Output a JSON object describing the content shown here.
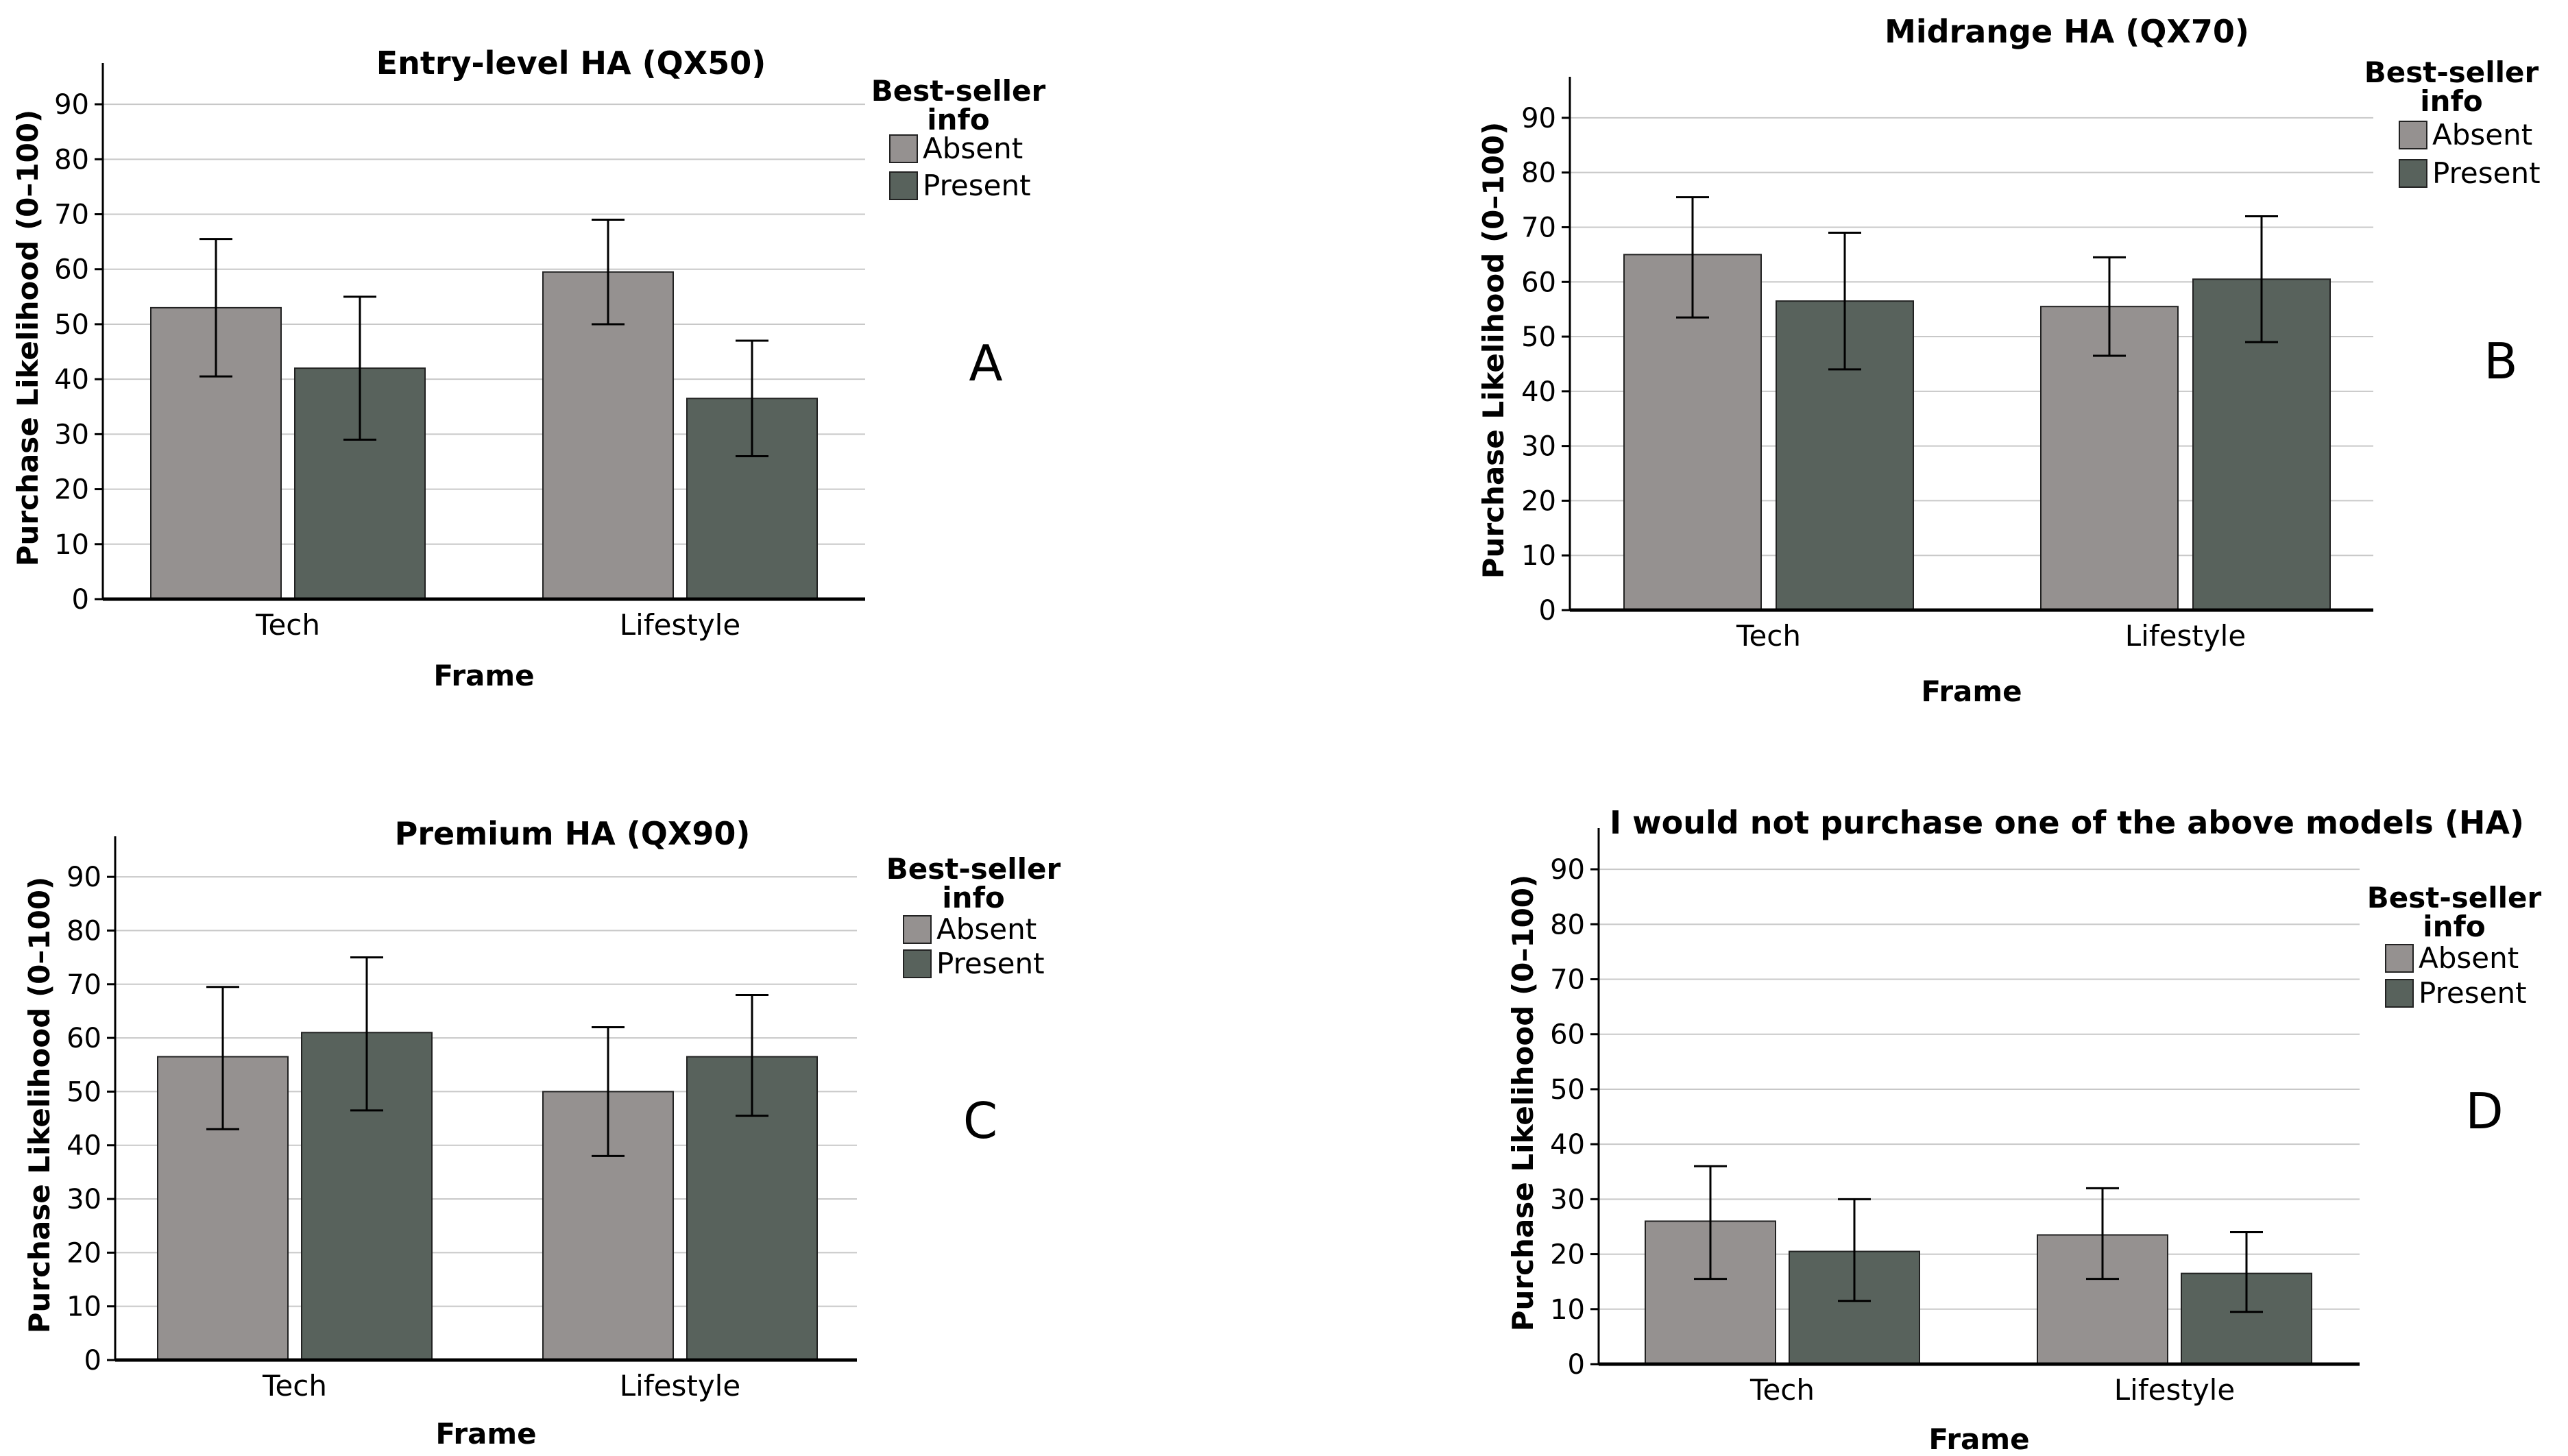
{
  "colors": {
    "absent": "#959190",
    "present": "#58625c",
    "grid": "#c8c8c8",
    "axis": "#000000",
    "error_bar": "#000000"
  },
  "chart_data": [
    {
      "type": "bar",
      "panel_label": "A",
      "title": "Entry-level HA (QX50)",
      "xlabel": "Frame",
      "ylabel": "Purchase Likelihood (0–100)",
      "categories": [
        "Tech",
        "Lifestyle"
      ],
      "ylim": [
        0,
        95
      ],
      "yticks": [
        0,
        10,
        20,
        30,
        40,
        50,
        60,
        70,
        80,
        90
      ],
      "grid": true,
      "legend": {
        "title": "Best-seller info",
        "title_lines": [
          "Best-seller",
          "info"
        ],
        "placement": "top-right"
      },
      "series": [
        {
          "name": "Absent",
          "values": [
            53,
            59.5
          ],
          "error_low": [
            40.5,
            50
          ],
          "error_high": [
            65.5,
            69
          ]
        },
        {
          "name": "Present",
          "values": [
            42,
            36.5
          ],
          "error_low": [
            29,
            26
          ],
          "error_high": [
            55,
            47
          ]
        }
      ]
    },
    {
      "type": "bar",
      "panel_label": "B",
      "title": "Midrange HA (QX70)",
      "xlabel": "Frame",
      "ylabel": "Purchase Likelihood (0–100)",
      "categories": [
        "Tech",
        "Lifestyle"
      ],
      "ylim": [
        0,
        95
      ],
      "yticks": [
        0,
        10,
        20,
        30,
        40,
        50,
        60,
        70,
        80,
        90
      ],
      "grid": true,
      "legend": {
        "title": "Best-seller info",
        "title_lines": [
          "Best-seller",
          "info"
        ],
        "placement": "top-right"
      },
      "series": [
        {
          "name": "Absent",
          "values": [
            65,
            55.5
          ],
          "error_low": [
            53.5,
            46.5
          ],
          "error_high": [
            75.5,
            64.5
          ]
        },
        {
          "name": "Present",
          "values": [
            56.5,
            60.5
          ],
          "error_low": [
            44,
            49
          ],
          "error_high": [
            69,
            72
          ]
        }
      ]
    },
    {
      "type": "bar",
      "panel_label": "C",
      "title": "Premium HA (QX90)",
      "xlabel": "Frame",
      "ylabel": "Purchase Likelihood (0–100)",
      "categories": [
        "Tech",
        "Lifestyle"
      ],
      "ylim": [
        0,
        95
      ],
      "yticks": [
        0,
        10,
        20,
        30,
        40,
        50,
        60,
        70,
        80,
        90
      ],
      "grid": true,
      "legend": {
        "title": "Best-seller info",
        "title_lines": [
          "Best-seller",
          "info"
        ],
        "placement": "top-right"
      },
      "series": [
        {
          "name": "Absent",
          "values": [
            56.5,
            50
          ],
          "error_low": [
            43,
            38
          ],
          "error_high": [
            69.5,
            62
          ]
        },
        {
          "name": "Present",
          "values": [
            61,
            56.5
          ],
          "error_low": [
            46.5,
            45.5
          ],
          "error_high": [
            75,
            68
          ]
        }
      ]
    },
    {
      "type": "bar",
      "panel_label": "D",
      "title": "I would not purchase one of the above models (HA)",
      "xlabel": "Frame",
      "ylabel": "Purchase Likelihood (0–100)",
      "categories": [
        "Tech",
        "Lifestyle"
      ],
      "ylim": [
        0,
        95
      ],
      "yticks": [
        0,
        10,
        20,
        30,
        40,
        50,
        60,
        70,
        80,
        90
      ],
      "grid": true,
      "legend": {
        "title": "Best-seller info",
        "title_lines": [
          "Best-seller",
          "info"
        ],
        "placement": "top-right"
      },
      "series": [
        {
          "name": "Absent",
          "values": [
            26,
            23.5
          ],
          "error_low": [
            15.5,
            15.5
          ],
          "error_high": [
            36,
            32
          ]
        },
        {
          "name": "Present",
          "values": [
            20.5,
            16.5
          ],
          "error_low": [
            11.5,
            9.5
          ],
          "error_high": [
            30,
            24
          ]
        }
      ]
    }
  ]
}
